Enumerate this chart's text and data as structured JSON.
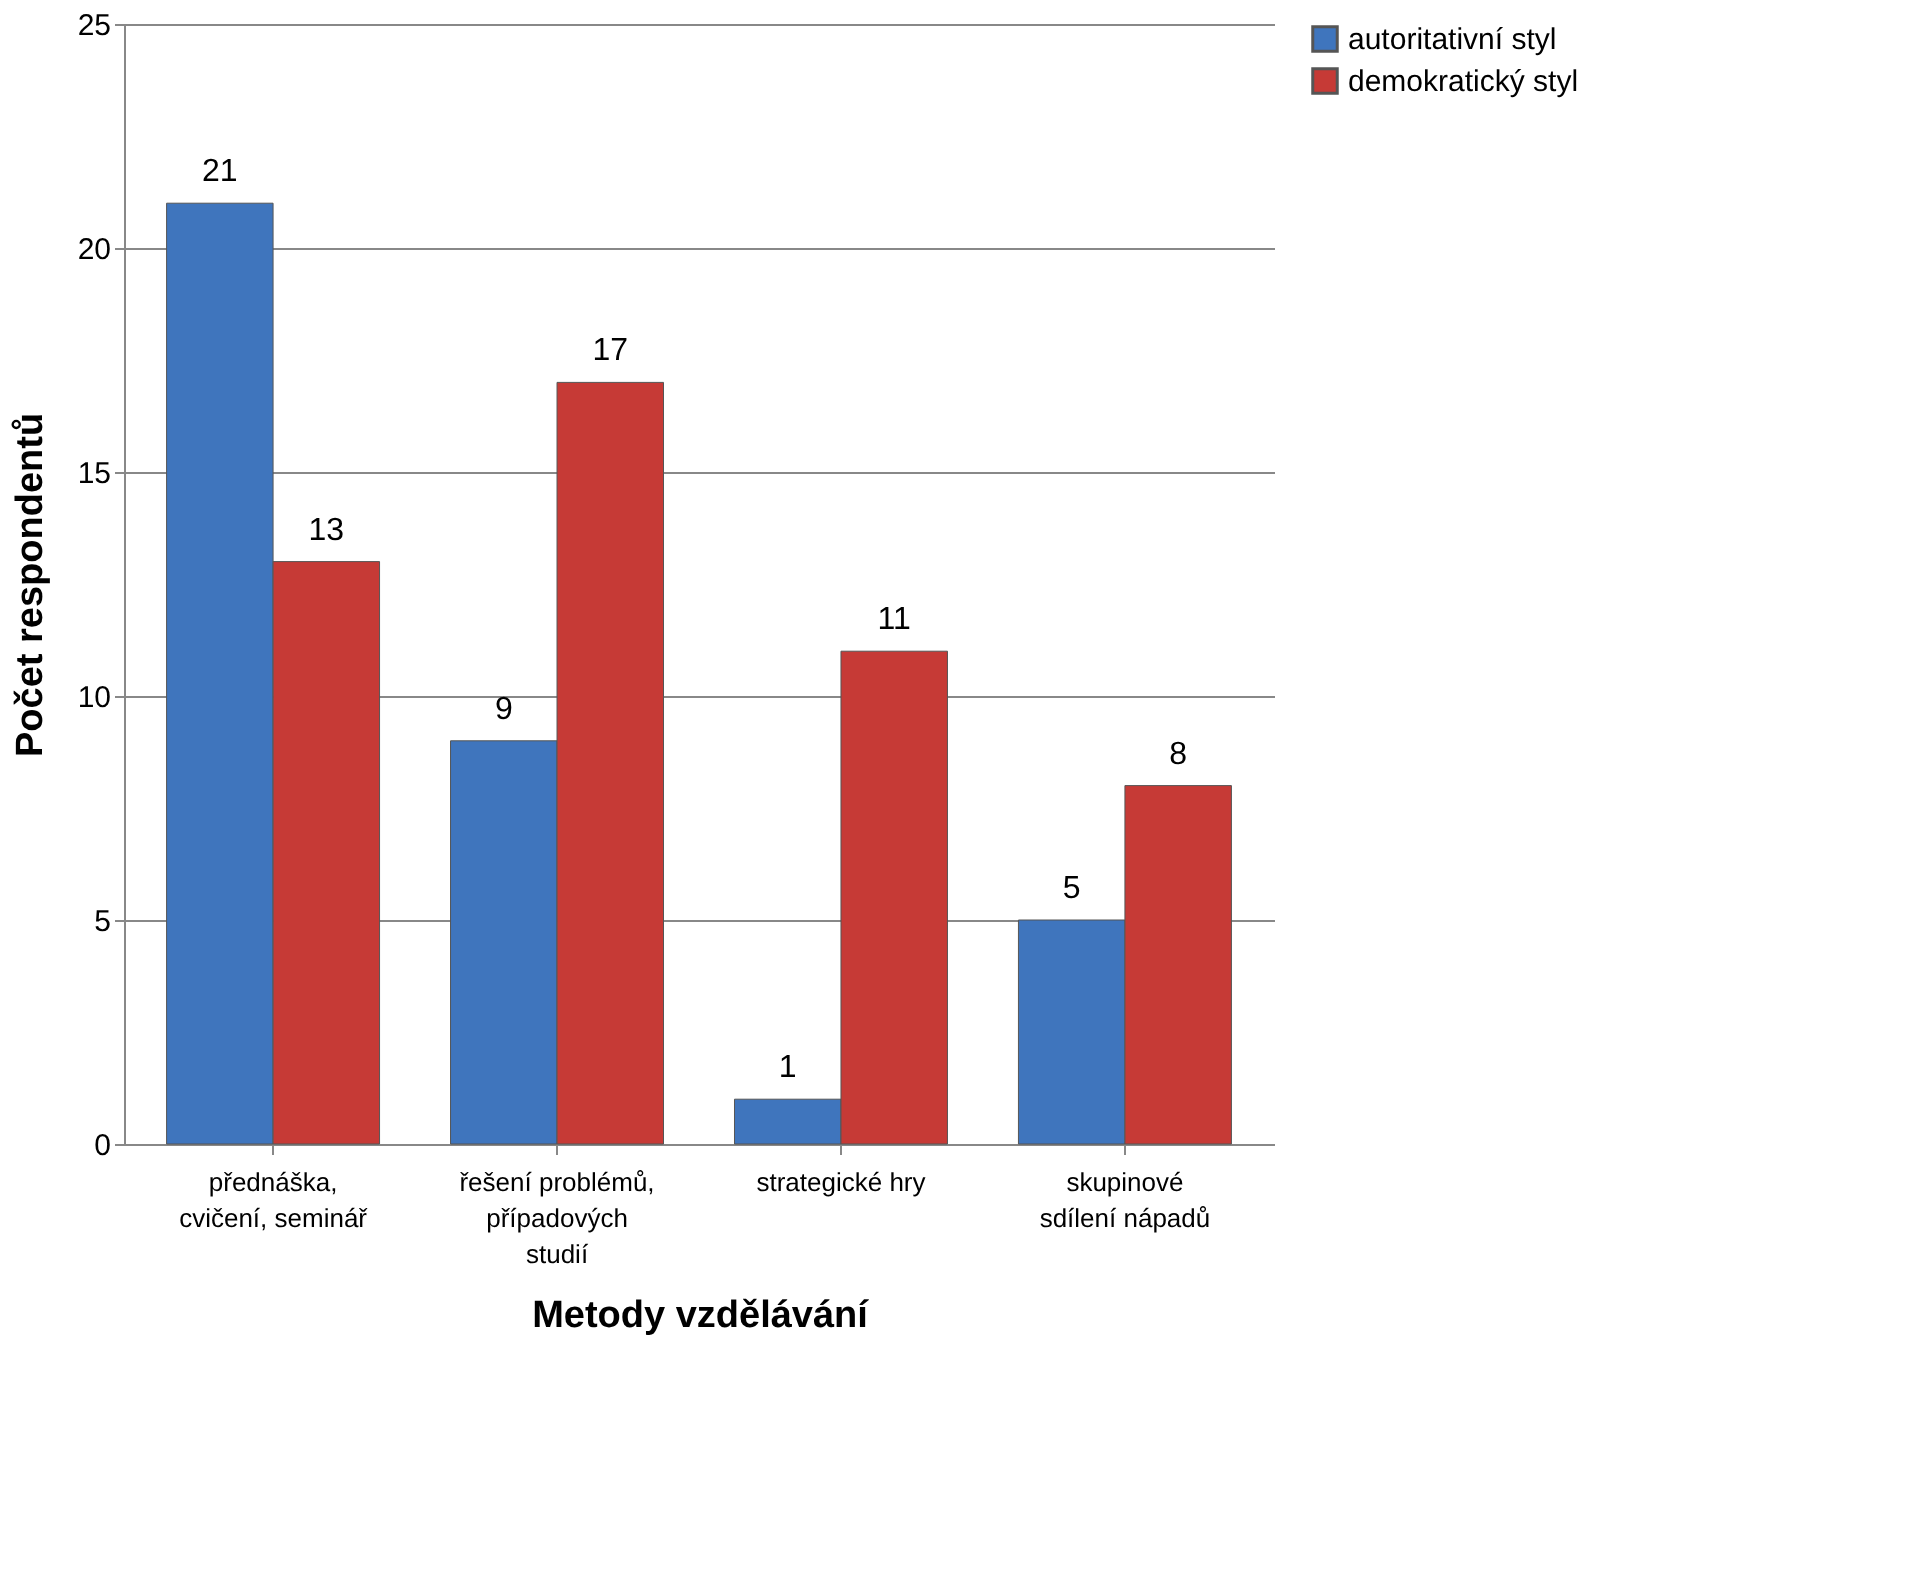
{
  "chart_data": {
    "type": "bar",
    "xlabel": "Metody vzdělávání",
    "ylabel": "Počet respondentů",
    "categories": [
      "přednáška, cvičení, seminář",
      "řešení problémů, případových studií",
      "strategické hry",
      "skupinové sdílení nápadů"
    ],
    "series": [
      {
        "name": "autoritativní styl",
        "color": "#3f75bd",
        "values": [
          21,
          9,
          1,
          5
        ]
      },
      {
        "name": "demokratický styl",
        "color": "#c63a36",
        "values": [
          13,
          17,
          11,
          8
        ]
      }
    ],
    "ylim": [
      0,
      25
    ],
    "yticks": [
      0,
      5,
      10,
      15,
      20,
      25
    ],
    "grid": "y",
    "legend": "right",
    "data_labels": true
  }
}
